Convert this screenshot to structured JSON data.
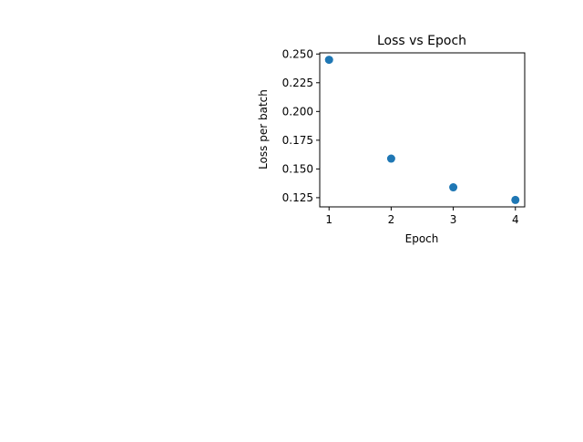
{
  "chart_data": {
    "type": "scatter",
    "title": "Loss vs Epoch",
    "xlabel": "Epoch",
    "ylabel": "Loss per batch",
    "x": [
      1,
      2,
      3,
      4
    ],
    "y": [
      0.245,
      0.159,
      0.134,
      0.123
    ],
    "xlim": [
      0.85,
      4.15
    ],
    "ylim": [
      0.117,
      0.251
    ],
    "xticks": [
      1,
      2,
      3,
      4
    ],
    "xtick_labels": [
      "1",
      "2",
      "3",
      "4"
    ],
    "yticks": [
      0.125,
      0.15,
      0.175,
      0.2,
      0.225,
      0.25
    ],
    "ytick_labels": [
      "0.125",
      "0.150",
      "0.175",
      "0.200",
      "0.225",
      "0.250"
    ],
    "grid": false,
    "marker_color": "#1f77b4"
  }
}
